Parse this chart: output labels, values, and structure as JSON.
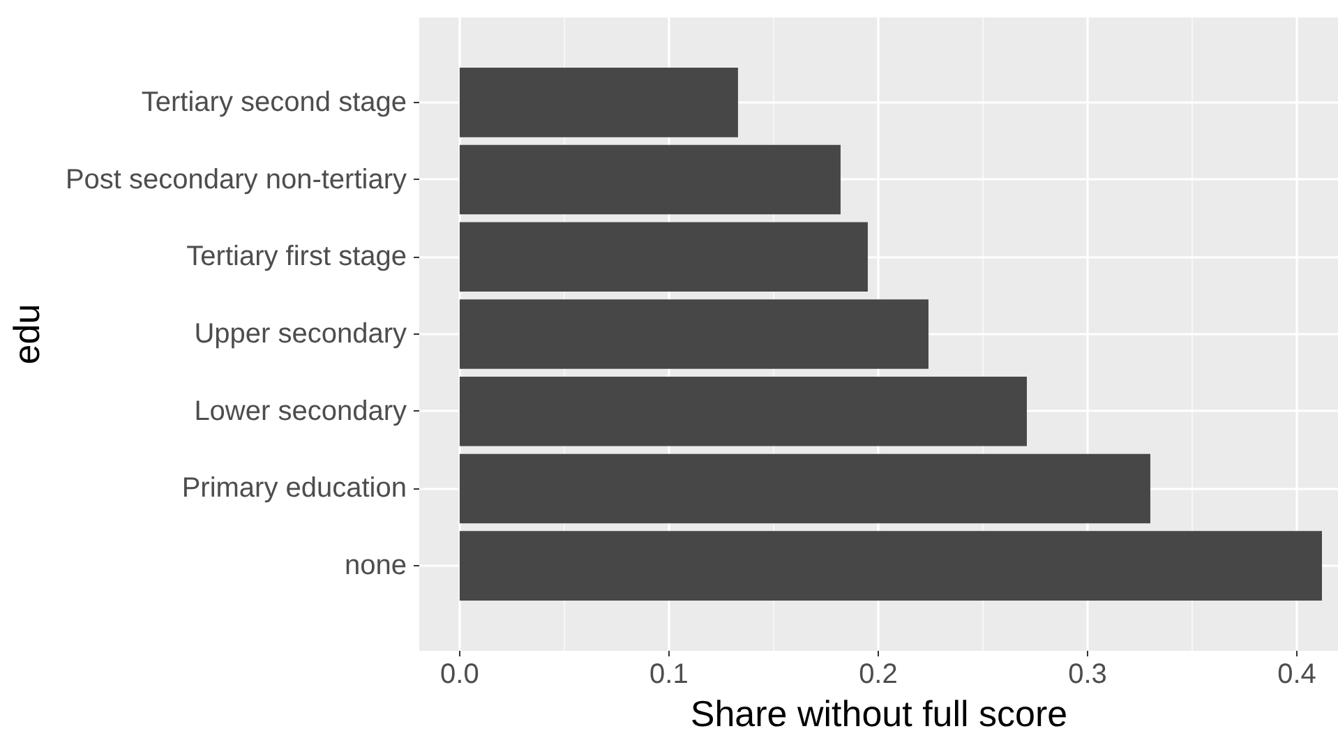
{
  "chart_data": {
    "type": "bar",
    "orientation": "horizontal",
    "xlabel": "Share without full score",
    "ylabel": "edu",
    "categories": [
      "Tertiary second stage",
      "Post secondary non-tertiary",
      "Tertiary first stage",
      "Upper secondary",
      "Lower secondary",
      "Primary education",
      "none"
    ],
    "values": [
      0.133,
      0.182,
      0.195,
      0.224,
      0.271,
      0.33,
      0.412
    ],
    "color": "#474747",
    "xlim": [
      -0.0193,
      0.42
    ],
    "xticks": [
      {
        "value": 0,
        "label": "0.0"
      },
      0.1,
      0.2,
      0.3,
      0.4
    ],
    "grid": true
  }
}
